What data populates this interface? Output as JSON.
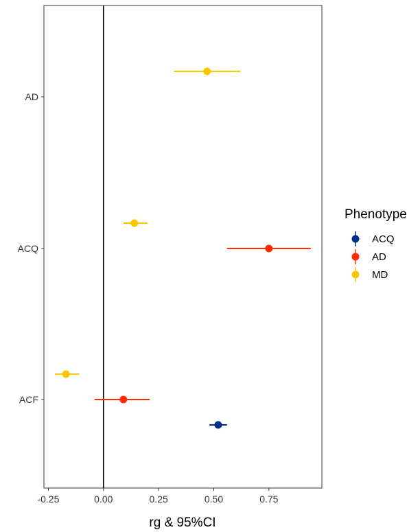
{
  "chart_data": {
    "type": "scatter",
    "subtype": "forest-plot",
    "xlabel": "rg & 95%CI",
    "xlim": [
      -0.27,
      0.99
    ],
    "x_ticks": [
      -0.25,
      0.0,
      0.25,
      0.5,
      0.75
    ],
    "x_tick_labels": [
      "-0.25",
      "0.00",
      "0.25",
      "0.50",
      "0.75"
    ],
    "categories": [
      "AD",
      "ACQ",
      "ACF"
    ],
    "reference_line_x": 0,
    "grid": false,
    "legend": {
      "title": "Phenotype",
      "placement": "right",
      "entries": [
        "ACQ",
        "AD",
        "MD"
      ]
    },
    "series": [
      {
        "name": "ACQ",
        "color": "#002f87",
        "points": [
          {
            "category": "ACF",
            "estimate": 0.52,
            "ci_low": 0.48,
            "ci_high": 0.56
          }
        ]
      },
      {
        "name": "AD",
        "color": "#ff2c00",
        "points": [
          {
            "category": "ACQ",
            "estimate": 0.75,
            "ci_low": 0.56,
            "ci_high": 0.94
          },
          {
            "category": "ACF",
            "estimate": 0.09,
            "ci_low": -0.04,
            "ci_high": 0.21
          }
        ]
      },
      {
        "name": "MD",
        "color": "#ffc500",
        "points": [
          {
            "category": "AD",
            "estimate": 0.47,
            "ci_low": 0.32,
            "ci_high": 0.62
          },
          {
            "category": "ACQ",
            "estimate": 0.14,
            "ci_low": 0.09,
            "ci_high": 0.2
          },
          {
            "category": "ACF",
            "estimate": -0.17,
            "ci_low": -0.22,
            "ci_high": -0.11
          }
        ]
      }
    ]
  }
}
